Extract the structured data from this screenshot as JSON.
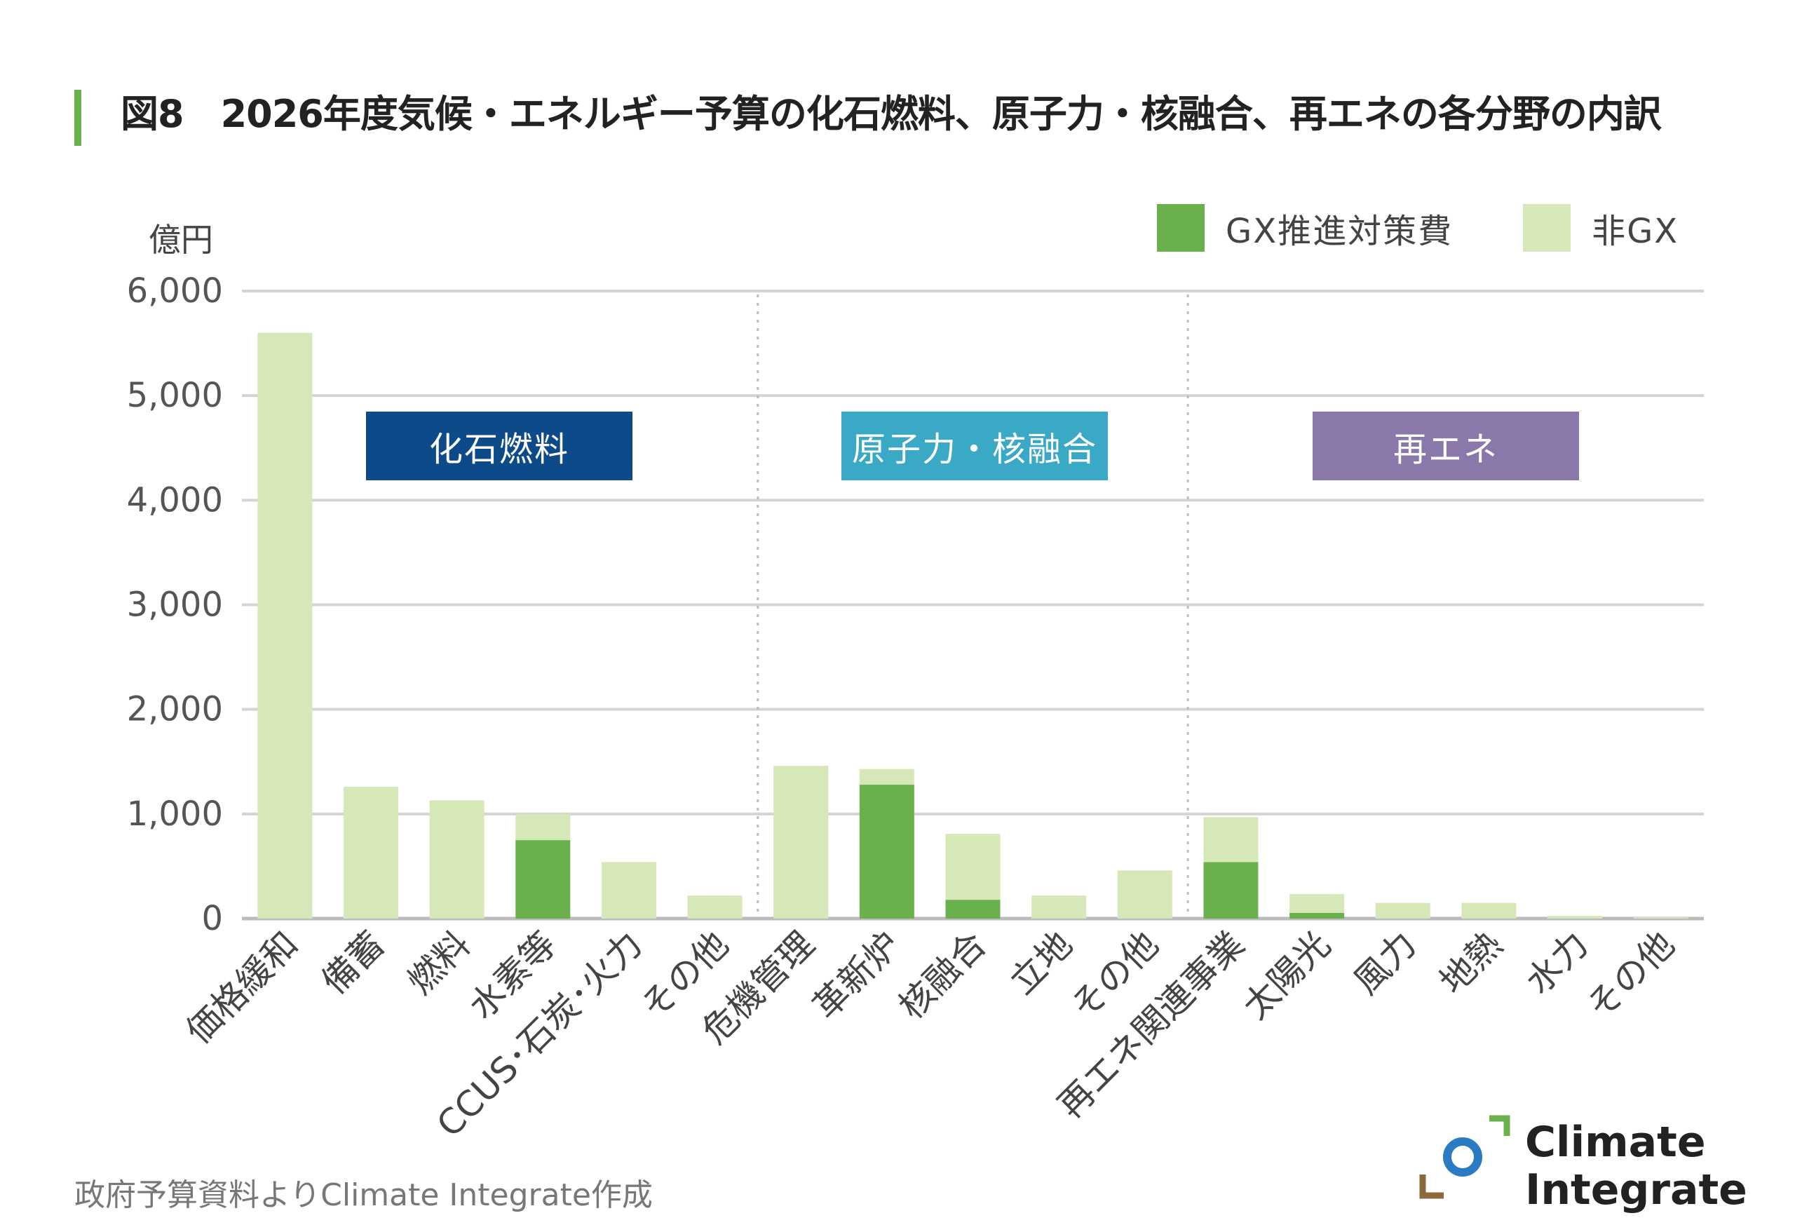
{
  "title": "図8　2026年度気候・エネルギー予算の化石燃料、原子力・核融合、再エネの各分野の内訳",
  "source": "政府予算資料よりClimate Integrate作成",
  "logo": {
    "line1": "Climate",
    "line2": "Integrate"
  },
  "colors": {
    "gx": "#6ab04c",
    "non_gx": "#d6e8b8",
    "fossil": "#0d4a8a",
    "nuclear": "#3aa9c6",
    "renewable": "#8a78ab",
    "accent": "#6ab04c"
  },
  "legend": {
    "gx": "GX推進対策費",
    "non_gx": "非GX"
  },
  "category_boxes": [
    {
      "label": "化石燃料",
      "color": "#0d4a8a"
    },
    {
      "label": "原子力・核融合",
      "color": "#3aa9c6"
    },
    {
      "label": "再エネ",
      "color": "#8a78ab"
    }
  ],
  "chart_data": {
    "type": "bar",
    "stacked": true,
    "title": "図8　2026年度気候・エネルギー予算の化石燃料、原子力・核融合、再エネの各分野の内訳",
    "ylabel": "億円",
    "xlabel": "",
    "ylim": [
      0,
      6000
    ],
    "yticks": [
      0,
      1000,
      2000,
      3000,
      4000,
      5000,
      6000
    ],
    "ytick_labels": [
      "0",
      "1,000",
      "2,000",
      "3,000",
      "4,000",
      "5,000",
      "6,000"
    ],
    "grid": true,
    "categories": [
      "価格緩和",
      "備蓄",
      "燃料",
      "水素等",
      "CCUS･石炭･火力",
      "その他",
      "危機管理",
      "革新炉",
      "核融合",
      "立地",
      "その他",
      "再エネ関連事業",
      "太陽光",
      "風力",
      "地熱",
      "水力",
      "その他"
    ],
    "groups": [
      {
        "name": "化石燃料",
        "start": 0,
        "end": 5
      },
      {
        "name": "原子力・核融合",
        "start": 6,
        "end": 10
      },
      {
        "name": "再エネ",
        "start": 11,
        "end": 16
      }
    ],
    "series": [
      {
        "name": "GX推進対策費",
        "values": [
          0,
          0,
          0,
          750,
          0,
          0,
          0,
          1280,
          180,
          0,
          0,
          540,
          55,
          0,
          0,
          0,
          0
        ]
      },
      {
        "name": "非GX",
        "values": [
          5600,
          1260,
          1130,
          250,
          540,
          220,
          1460,
          150,
          630,
          220,
          460,
          430,
          180,
          150,
          150,
          25,
          12
        ]
      }
    ]
  }
}
